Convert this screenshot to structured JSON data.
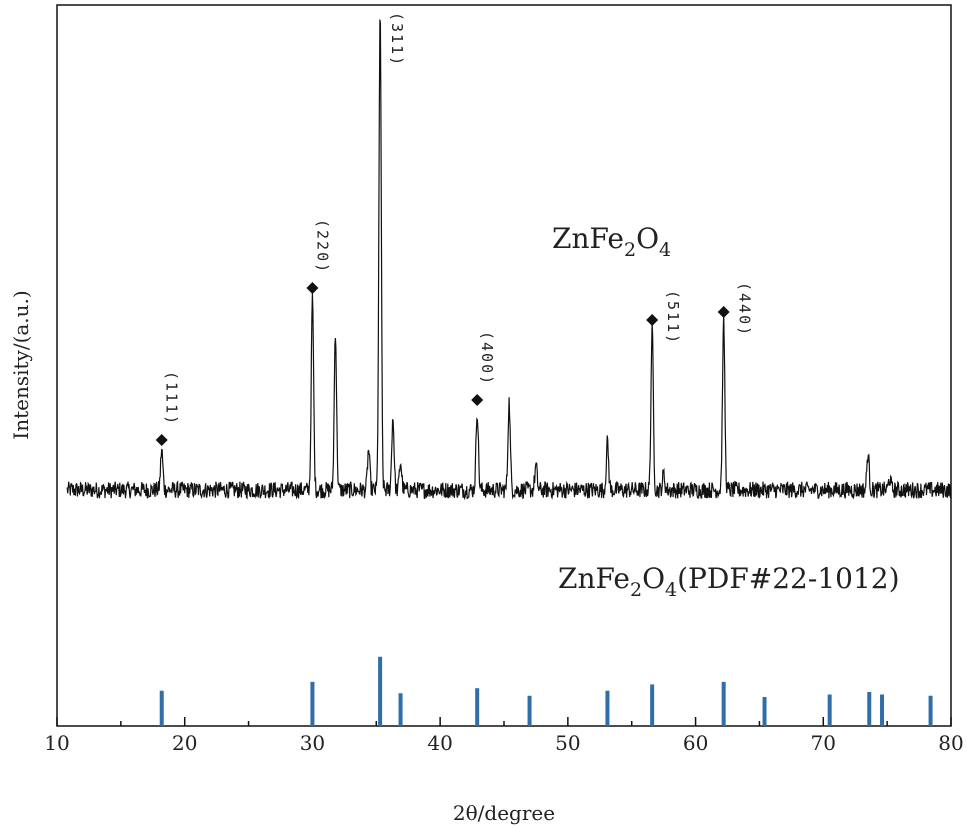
{
  "chart_data": {
    "type": "line",
    "xlabel": "2θ/degree",
    "ylabel": "Intensity/(a.u.)",
    "xlim": [
      10,
      80
    ],
    "xticks": [
      10,
      20,
      30,
      40,
      50,
      60,
      70,
      80
    ],
    "grid": false,
    "legend": "none",
    "series": [
      {
        "name": "ZnFe",
        "name_sub1": "2",
        "name_mid": "O",
        "name_sub2": "4",
        "baseline": 0.5,
        "color": "#111111",
        "peaks": [
          {
            "x": 18.2,
            "y": 10
          },
          {
            "x": 30.0,
            "y": 48
          },
          {
            "x": 31.8,
            "y": 40
          },
          {
            "x": 34.4,
            "y": 10
          },
          {
            "x": 35.3,
            "y": 120
          },
          {
            "x": 36.3,
            "y": 18
          },
          {
            "x": 36.9,
            "y": 7
          },
          {
            "x": 42.9,
            "y": 20
          },
          {
            "x": 45.4,
            "y": 22
          },
          {
            "x": 47.5,
            "y": 6
          },
          {
            "x": 53.1,
            "y": 12
          },
          {
            "x": 56.6,
            "y": 40
          },
          {
            "x": 57.5,
            "y": 4
          },
          {
            "x": 62.2,
            "y": 42
          },
          {
            "x": 73.5,
            "y": 9
          },
          {
            "x": 75.2,
            "y": 3
          }
        ]
      },
      {
        "name": "ZnFe",
        "name_sub1": "2",
        "name_mid": "O",
        "name_sub2": "4",
        "name_suffix": "(PDF#22-1012)",
        "type": "stick",
        "color": "#2f6ea8",
        "x": [
          18.2,
          30.0,
          35.3,
          36.9,
          42.9,
          47.0,
          53.1,
          56.6,
          62.2,
          65.4,
          70.5,
          73.6,
          74.6,
          78.4
        ],
        "values": [
          28,
          35,
          55,
          26,
          30,
          24,
          28,
          33,
          35,
          23,
          25,
          27,
          25,
          24
        ]
      }
    ],
    "annotations": [
      {
        "text": "(111)",
        "x": 18.2,
        "marker": true
      },
      {
        "text": "(220)",
        "x": 30.0,
        "marker": true
      },
      {
        "text": "(311)",
        "x": 35.3,
        "marker": false
      },
      {
        "text": "(400)",
        "x": 42.9,
        "marker": true
      },
      {
        "text": "(511)",
        "x": 56.6,
        "marker": true
      },
      {
        "text": "(440)",
        "x": 62.2,
        "marker": true
      }
    ]
  }
}
